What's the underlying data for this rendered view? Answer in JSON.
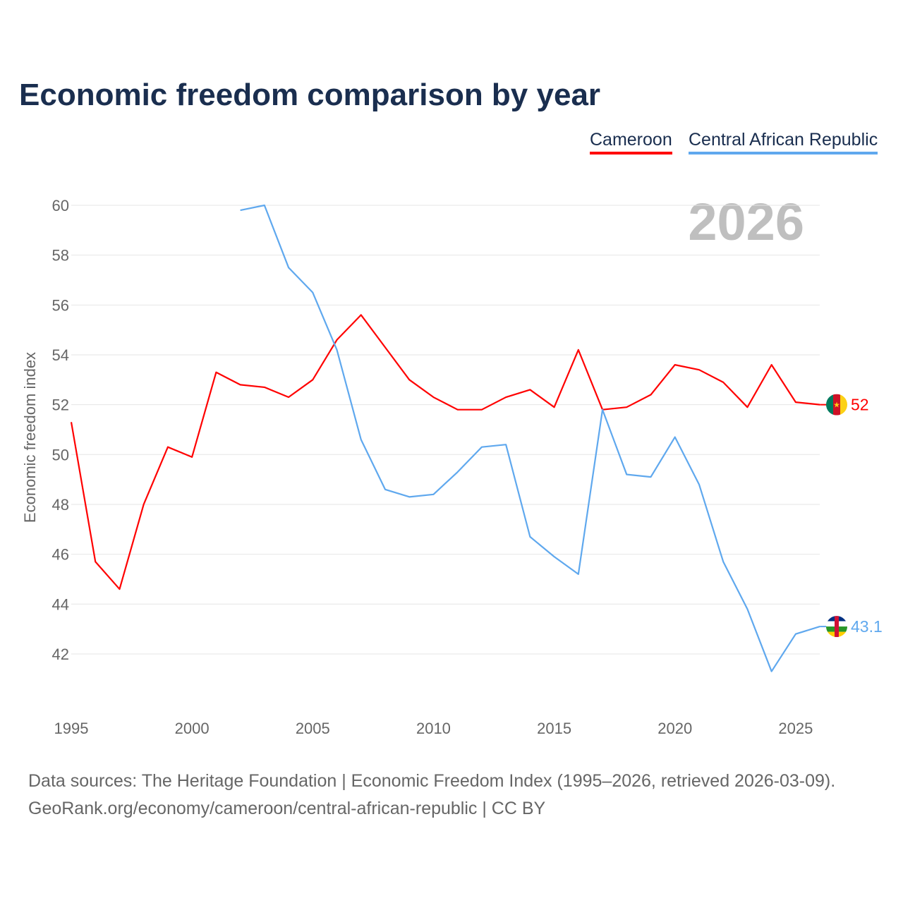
{
  "title": "Economic freedom comparison by year",
  "footer": {
    "line1": "Data sources: The Heritage Foundation | Economic Freedom Index (1995–2026, retrieved 2026-03-09).",
    "line2": "GeoRank.org/economy/cameroon/central-african-republic | CC BY"
  },
  "chart_data": {
    "type": "line",
    "title": "Economic freedom comparison by year",
    "ylabel": "Economic freedom index",
    "xlabel": "",
    "year_watermark": "2026",
    "xlim": [
      1995,
      2026
    ],
    "ylim": [
      40,
      61
    ],
    "xticks": [
      "1995",
      "2000",
      "2005",
      "2010",
      "2015",
      "2020",
      "2025"
    ],
    "yticks": [
      "42",
      "44",
      "46",
      "48",
      "50",
      "52",
      "54",
      "56",
      "58",
      "60"
    ],
    "grid": true,
    "legend_position": "top-right",
    "series": [
      {
        "name": "Cameroon",
        "color": "#ff0000",
        "end_label": "52",
        "flag": "cameroon-flag",
        "x": [
          1995,
          1996,
          1997,
          1998,
          1999,
          2000,
          2001,
          2002,
          2003,
          2004,
          2005,
          2006,
          2007,
          2008,
          2009,
          2010,
          2011,
          2012,
          2013,
          2014,
          2015,
          2016,
          2017,
          2018,
          2019,
          2020,
          2021,
          2022,
          2023,
          2024,
          2025,
          2026
        ],
        "values": [
          51.3,
          45.7,
          44.6,
          48.0,
          50.3,
          49.9,
          53.3,
          52.8,
          52.7,
          52.3,
          53.0,
          54.6,
          55.6,
          54.3,
          53.0,
          52.3,
          51.8,
          51.8,
          52.3,
          52.6,
          51.9,
          54.2,
          51.8,
          51.9,
          52.4,
          53.6,
          53.4,
          52.9,
          51.9,
          53.6,
          52.1,
          52.0
        ]
      },
      {
        "name": "Central African Republic",
        "color": "#5fa8ee",
        "end_label": "43.1",
        "flag": "car-flag",
        "x": [
          2002,
          2003,
          2004,
          2005,
          2006,
          2007,
          2008,
          2009,
          2010,
          2011,
          2012,
          2013,
          2014,
          2015,
          2016,
          2017,
          2018,
          2019,
          2020,
          2021,
          2022,
          2023,
          2024,
          2025,
          2026
        ],
        "values": [
          59.8,
          60.0,
          57.5,
          56.5,
          54.2,
          50.6,
          48.6,
          48.3,
          48.4,
          49.3,
          50.3,
          50.4,
          46.7,
          45.9,
          45.2,
          51.8,
          49.2,
          49.1,
          50.7,
          48.8,
          45.7,
          43.8,
          41.3,
          42.8,
          43.1
        ]
      }
    ]
  }
}
